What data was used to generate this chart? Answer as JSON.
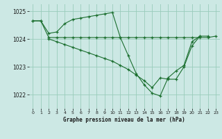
{
  "bg_color": "#cce8e4",
  "grid_color": "#99ccbb",
  "line_color": "#1a6e2e",
  "title": "Graphe pression niveau de la mer (hPa)",
  "ylim": [
    1021.5,
    1025.25
  ],
  "xlim": [
    -0.5,
    23.5
  ],
  "yticks": [
    1022,
    1023,
    1024,
    1025
  ],
  "ytick_labels": [
    "1022",
    "1023",
    "1024",
    "1025"
  ],
  "xticks": [
    0,
    1,
    2,
    3,
    4,
    5,
    6,
    7,
    8,
    9,
    10,
    11,
    12,
    13,
    14,
    15,
    16,
    17,
    18,
    19,
    20,
    21,
    22,
    23
  ],
  "series": [
    {
      "x": [
        0,
        1,
        2,
        3,
        4,
        5,
        6,
        7,
        8,
        9,
        10,
        11,
        12,
        13,
        14,
        15,
        16,
        17,
        18,
        19,
        20,
        21
      ],
      "y": [
        1024.65,
        1024.65,
        1024.2,
        1024.25,
        1024.55,
        1024.7,
        1024.75,
        1024.8,
        1024.85,
        1024.9,
        1024.95,
        1024.05,
        1023.4,
        1022.75,
        1022.35,
        1022.05,
        1021.95,
        1022.6,
        1022.85,
        1023.05,
        1023.9,
        1024.1
      ]
    },
    {
      "x": [
        0,
        1,
        2,
        3,
        4,
        5,
        6,
        7,
        8,
        9,
        10,
        11,
        12,
        13,
        14,
        15,
        16,
        17,
        18,
        19,
        20,
        21,
        22,
        23
      ],
      "y": [
        1024.65,
        1024.65,
        1024.05,
        1024.05,
        1024.05,
        1024.05,
        1024.05,
        1024.05,
        1024.05,
        1024.05,
        1024.05,
        1024.05,
        1024.05,
        1024.05,
        1024.05,
        1024.05,
        1024.05,
        1024.05,
        1024.05,
        1024.05,
        1024.05,
        1024.05,
        1024.05,
        1024.1
      ]
    },
    {
      "x": [
        2,
        3,
        4,
        5,
        6,
        7,
        8,
        9,
        10,
        11,
        12,
        13,
        14,
        15,
        16,
        17,
        18,
        19,
        20,
        21,
        22
      ],
      "y": [
        1024.0,
        1023.9,
        1023.8,
        1023.7,
        1023.6,
        1023.5,
        1023.4,
        1023.3,
        1023.2,
        1023.05,
        1022.9,
        1022.7,
        1022.5,
        1022.25,
        1022.6,
        1022.55,
        1022.55,
        1023.0,
        1023.75,
        1024.1,
        1024.1
      ]
    }
  ]
}
